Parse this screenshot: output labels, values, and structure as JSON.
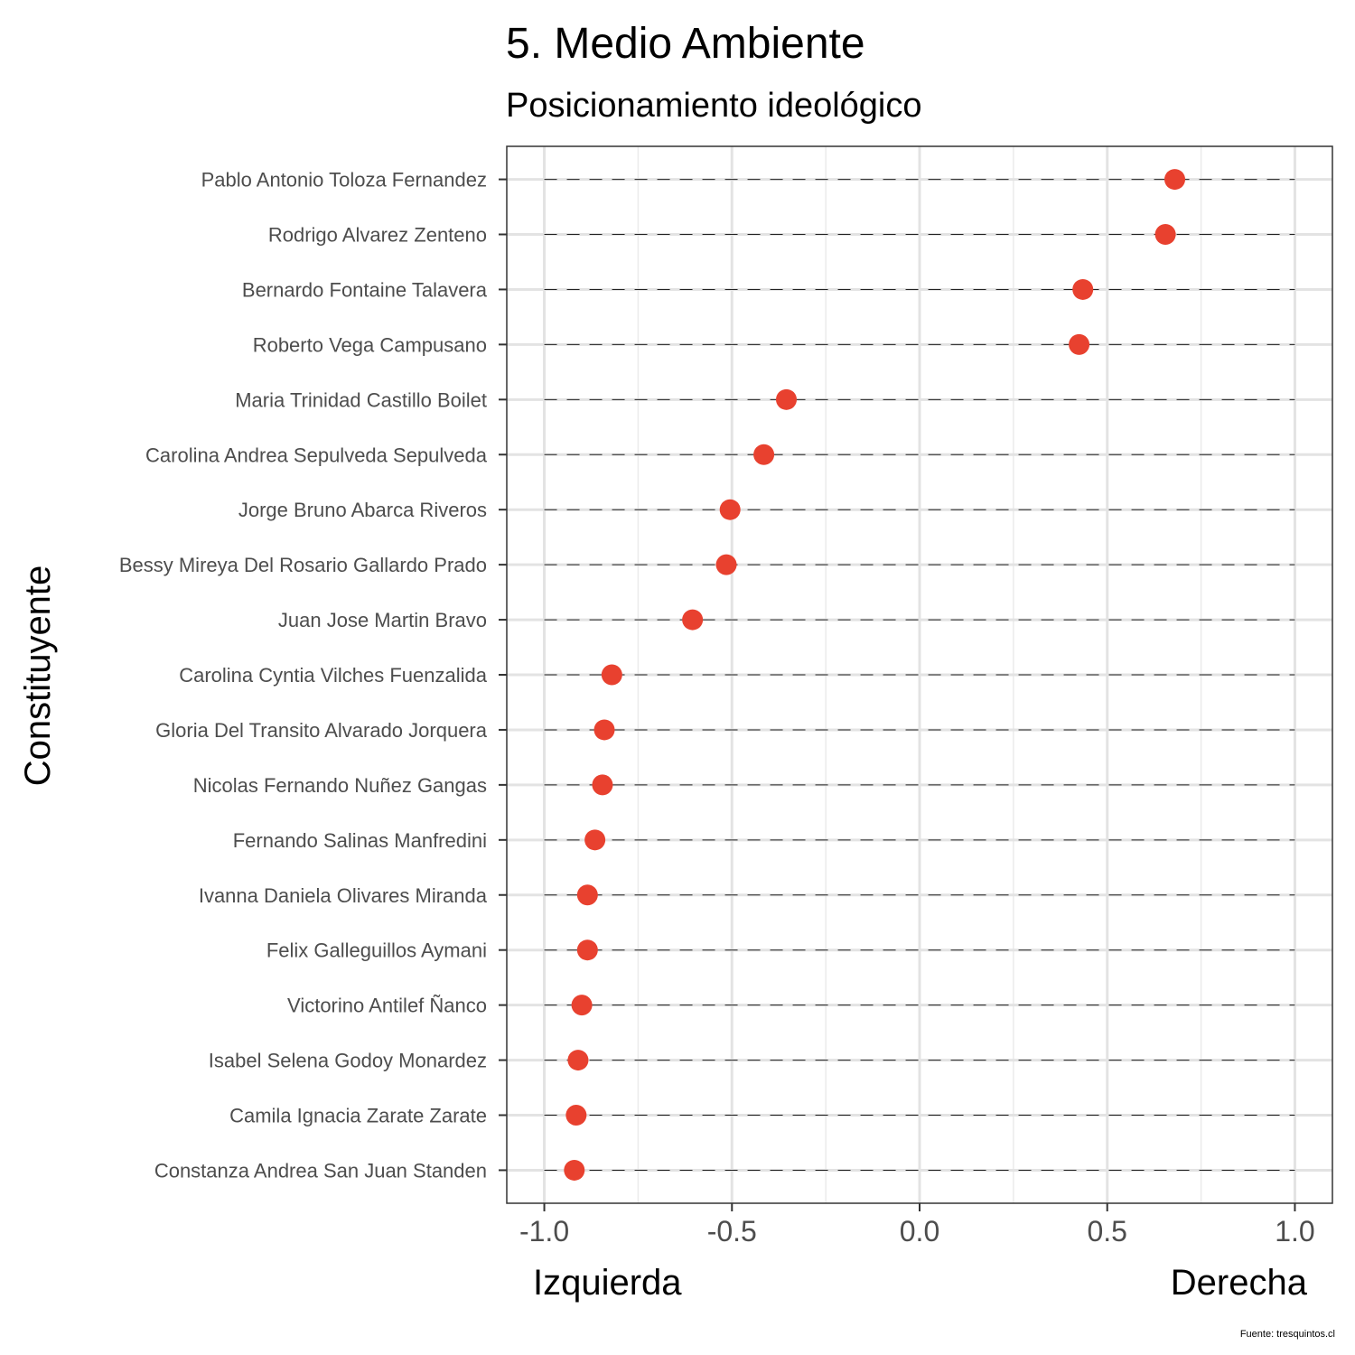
{
  "chart_data": {
    "type": "scatter",
    "title": "5. Medio Ambiente",
    "subtitle": "Posicionamiento ideológico",
    "ylabel": "Constituyente",
    "x_left_label": "Izquierda",
    "x_right_label": "Derecha",
    "source": "Fuente: tresquintos.cl",
    "xlim": [
      -1.1,
      1.1
    ],
    "x_ticks": [
      -1.0,
      -0.5,
      0.0,
      0.5,
      1.0
    ],
    "x_tick_labels": [
      "-1.0",
      "-0.5",
      "0.0",
      "0.5",
      "1.0"
    ],
    "grid": true,
    "point_color": "#E8412F",
    "points": [
      {
        "name": "Pablo Antonio Toloza Fernandez",
        "value": 0.68
      },
      {
        "name": "Rodrigo Alvarez Zenteno",
        "value": 0.655
      },
      {
        "name": "Bernardo Fontaine Talavera",
        "value": 0.435
      },
      {
        "name": "Roberto Vega Campusano",
        "value": 0.425
      },
      {
        "name": "Maria Trinidad Castillo Boilet",
        "value": -0.355
      },
      {
        "name": "Carolina Andrea Sepulveda Sepulveda",
        "value": -0.415
      },
      {
        "name": "Jorge Bruno Abarca Riveros",
        "value": -0.505
      },
      {
        "name": "Bessy Mireya Del Rosario Gallardo Prado",
        "value": -0.515
      },
      {
        "name": "Juan Jose Martin Bravo",
        "value": -0.605
      },
      {
        "name": "Carolina Cyntia Vilches Fuenzalida",
        "value": -0.82
      },
      {
        "name": "Gloria Del Transito Alvarado Jorquera",
        "value": -0.84
      },
      {
        "name": "Nicolas Fernando Nuñez Gangas",
        "value": -0.845
      },
      {
        "name": "Fernando Salinas Manfredini",
        "value": -0.865
      },
      {
        "name": "Ivanna Daniela Olivares Miranda",
        "value": -0.885
      },
      {
        "name": "Felix Galleguillos Aymani",
        "value": -0.885
      },
      {
        "name": "Victorino Antilef Ñanco",
        "value": -0.9
      },
      {
        "name": "Isabel Selena Godoy Monardez",
        "value": -0.91
      },
      {
        "name": "Camila Ignacia Zarate Zarate",
        "value": -0.915
      },
      {
        "name": "Constanza Andrea San Juan Standen",
        "value": -0.92
      }
    ]
  }
}
